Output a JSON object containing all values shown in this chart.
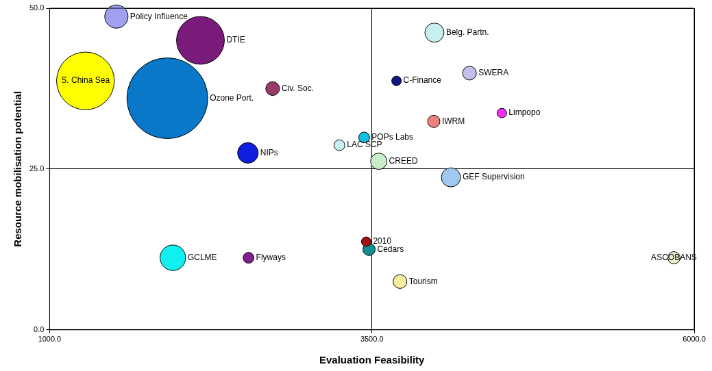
{
  "chart_data": {
    "type": "bubble",
    "xlabel": "Evaluation Feasibility",
    "ylabel": "Resource mobilisation potential",
    "xlim": [
      1000,
      6000
    ],
    "xticks": [
      {
        "value": 1000,
        "label": "1000.0"
      },
      {
        "value": 3500,
        "label": "3500.0"
      },
      {
        "value": 6000,
        "label": "6000.0"
      }
    ],
    "ylim": [
      0,
      50
    ],
    "yticks": [
      {
        "value": 0,
        "label": "0.0"
      },
      {
        "value": 25,
        "label": "25.0"
      },
      {
        "value": 50,
        "label": "50.0"
      }
    ],
    "grid": true,
    "legend": false,
    "series": [
      {
        "name": "Policy Influence",
        "color": "#a0a0f0",
        "x": [
          1518
        ],
        "values": [
          48.7
        ],
        "sizes": [
          0.083
        ]
      },
      {
        "name": "DTIE",
        "color": "#7a1a7a",
        "x": [
          2170
        ],
        "values": [
          45.0
        ],
        "sizes": [
          0.35
        ]
      },
      {
        "name": "S. China Sea",
        "color": "#ffff00",
        "x": [
          1278
        ],
        "values": [
          38.7
        ],
        "sizes": [
          0.51
        ]
      },
      {
        "name": "Ozone Port.",
        "color": "#0a78c8",
        "x": [
          1913
        ],
        "values": [
          36.0
        ],
        "sizes": [
          1
        ]
      },
      {
        "name": "Civ. Soc.",
        "color": "#9a3a6a",
        "x": [
          2730
        ],
        "values": [
          37.5
        ],
        "sizes": [
          0.029
        ]
      },
      {
        "name": "NIPs",
        "color": "#1020e0",
        "x": [
          2538
        ],
        "values": [
          27.5
        ],
        "sizes": [
          0.065
        ]
      },
      {
        "name": "LAC SCP",
        "color": "#c8f0f0",
        "x": [
          3248
        ],
        "values": [
          28.7
        ],
        "sizes": [
          0.018
        ]
      },
      {
        "name": "POPs Labs",
        "color": "#10c0e0",
        "x": [
          3440
        ],
        "values": [
          29.9
        ],
        "sizes": [
          0.018
        ]
      },
      {
        "name": "CREED",
        "color": "#c8eec8",
        "x": [
          3553
        ],
        "values": [
          26.2
        ],
        "sizes": [
          0.041
        ]
      },
      {
        "name": "C-Finance",
        "color": "#101880",
        "x": [
          3691
        ],
        "values": [
          38.7
        ],
        "sizes": [
          0.014
        ]
      },
      {
        "name": "Belg. Partn.",
        "color": "#c8f0f0",
        "x": [
          3985
        ],
        "values": [
          46.2
        ],
        "sizes": [
          0.056
        ]
      },
      {
        "name": "SWERA",
        "color": "#c0c0e8",
        "x": [
          4257
        ],
        "values": [
          39.9
        ],
        "sizes": [
          0.029
        ]
      },
      {
        "name": "IWRM",
        "color": "#f08080",
        "x": [
          3980
        ],
        "values": [
          32.4
        ],
        "sizes": [
          0.023
        ]
      },
      {
        "name": "Limpopo",
        "color": "#f030f0",
        "x": [
          4508
        ],
        "values": [
          33.7
        ],
        "sizes": [
          0.014
        ]
      },
      {
        "name": "GEF Supervision",
        "color": "#a0c8f0",
        "x": [
          4113
        ],
        "values": [
          23.7
        ],
        "sizes": [
          0.056
        ]
      },
      {
        "name": "GCLME",
        "color": "#10f0f0",
        "x": [
          1956
        ],
        "values": [
          11.2
        ],
        "sizes": [
          0.1
        ]
      },
      {
        "name": "Flyways",
        "color": "#802090",
        "x": [
          2543
        ],
        "values": [
          11.2
        ],
        "sizes": [
          0.018
        ]
      },
      {
        "name": "2010",
        "color": "#a01010",
        "x": [
          3456
        ],
        "values": [
          13.7
        ],
        "sizes": [
          0.014
        ]
      },
      {
        "name": "Cedars",
        "color": "#109090",
        "x": [
          3478
        ],
        "values": [
          12.5
        ],
        "sizes": [
          0.023
        ]
      },
      {
        "name": "Tourism",
        "color": "#f8f0a0",
        "x": [
          3718
        ],
        "values": [
          7.5
        ],
        "sizes": [
          0.029
        ]
      },
      {
        "name": "ASCOBANS",
        "color": "#f0f0d0",
        "x": [
          5843
        ],
        "values": [
          11.2
        ],
        "sizes": [
          0.023
        ]
      }
    ]
  }
}
